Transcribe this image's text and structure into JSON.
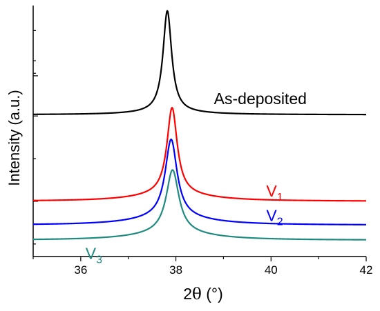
{
  "chart_data": {
    "type": "line",
    "xlabel_main": "2",
    "xlabel_theta": "θ",
    "xlabel_unit": " (°)",
    "ylabel": "Intensity (a.u.)",
    "xlim": [
      35,
      42
    ],
    "ylim": [
      0,
      100
    ],
    "x_ticks": [
      36,
      38,
      40,
      42
    ],
    "y_ticks_unlabeled": [
      22,
      56
    ],
    "grid": false,
    "series": [
      {
        "name": "As-deposited",
        "label_main": "As-deposited",
        "label_sub": "",
        "color": "#000000",
        "baseline": 56.5,
        "peak_x": 37.82,
        "peak_height": 40.5,
        "width": 0.11,
        "wing": 0.9
      },
      {
        "name": "V1",
        "label_main": "V",
        "label_sub": "1",
        "color": "#ff0000",
        "baseline": 22.0,
        "peak_x": 37.92,
        "peak_height": 34.5,
        "width": 0.13,
        "wing": 2.8
      },
      {
        "name": "V2",
        "label_main": "V",
        "label_sub": "2",
        "color": "#0000ff",
        "baseline": 12.5,
        "peak_x": 37.9,
        "peak_height": 31.0,
        "width": 0.15,
        "wing": 3.2
      },
      {
        "name": "V3",
        "label_main": "V",
        "label_sub": "3",
        "color": "#1f8a80",
        "baseline": 6.5,
        "peak_x": 37.93,
        "peak_height": 25.0,
        "width": 0.16,
        "wing": 3.0
      }
    ]
  }
}
